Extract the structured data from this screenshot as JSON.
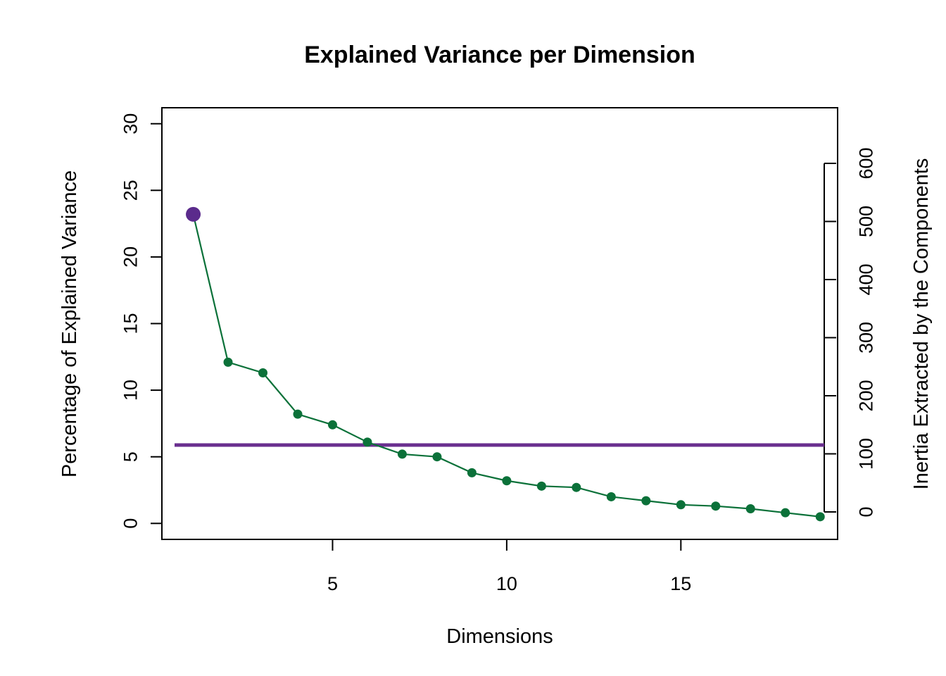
{
  "chart_data": {
    "type": "line",
    "title": "Explained Variance per Dimension",
    "xlabel": "Dimensions",
    "ylabel": "Percentage of Explained Variance",
    "y2label": "Inertia Extracted by the Components",
    "xlim": [
      0.1,
      19.5
    ],
    "ylim": [
      -1.2,
      31.2
    ],
    "y2lim": [
      0,
      600
    ],
    "x_ticks": [
      5,
      10,
      15
    ],
    "y_ticks": [
      0,
      5,
      10,
      15,
      20,
      25,
      30
    ],
    "y2_ticks": [
      0,
      100,
      200,
      300,
      400,
      500,
      600
    ],
    "grid": false,
    "series": [
      {
        "x": [
          1,
          2,
          3,
          4,
          5,
          6,
          7,
          8,
          9,
          10,
          11,
          12,
          13,
          14,
          15,
          16,
          17,
          18,
          19
        ],
        "values": [
          23.2,
          12.1,
          11.3,
          8.2,
          7.4,
          6.1,
          5.2,
          5.0,
          3.8,
          3.2,
          2.8,
          2.7,
          2.0,
          1.7,
          1.4,
          1.3,
          1.1,
          0.8,
          0.5
        ],
        "color": "#0b7139",
        "highlight_point": 1,
        "highlight_color": "#5b2b8c"
      }
    ],
    "reference_line": {
      "y": 5.88,
      "color": "#6a2f8f"
    }
  }
}
